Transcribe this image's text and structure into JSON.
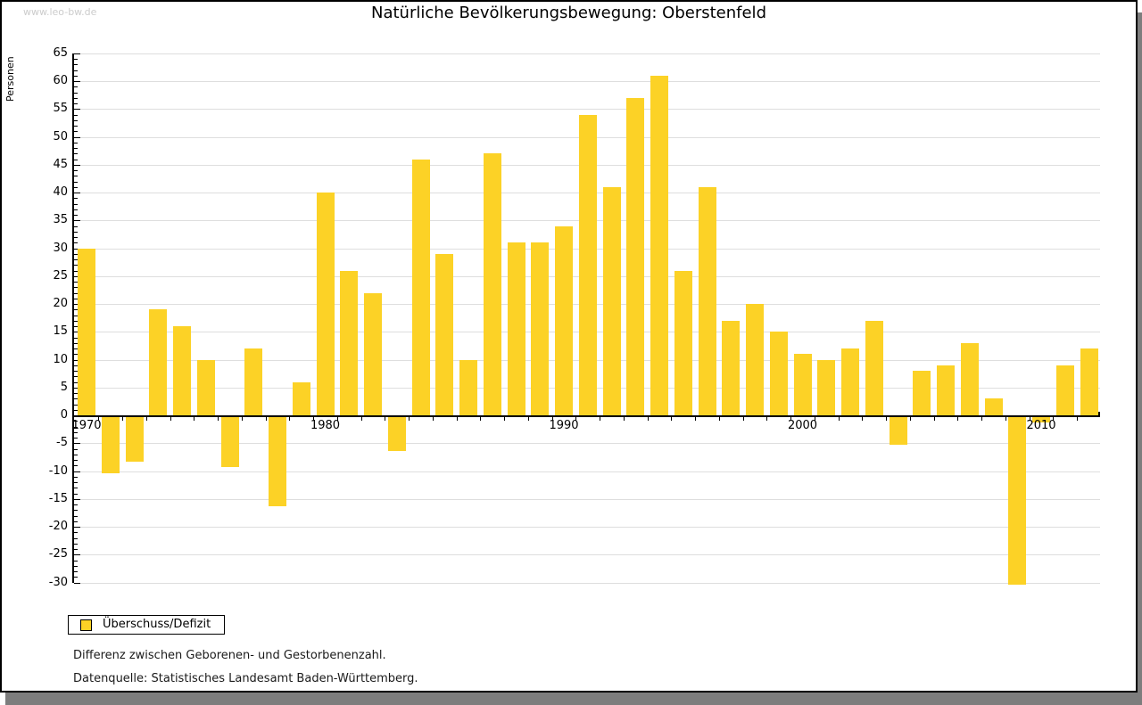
{
  "watermark": "www.leo-bw.de",
  "title": "Natürliche Bevölkerungsbewegung: Oberstenfeld",
  "legend": {
    "label": "Überschuss/Defizit"
  },
  "footnotes": {
    "line1": "Differenz zwischen Geborenen- und Gestorbenenzahl.",
    "line2": "Datenquelle: Statistisches Landesamt Baden-Württemberg."
  },
  "colors": {
    "bar": "#fcd226",
    "grid": "#dedede",
    "watermark": "#cccccc",
    "shadow": "#7d7d7d"
  },
  "chart_data": {
    "type": "bar",
    "title": "Natürliche Bevölkerungsbewegung: Oberstenfeld",
    "ylabel": "Personen",
    "xlabel": "",
    "series_name": "Überschuss/Defizit",
    "x": [
      1970,
      1971,
      1972,
      1973,
      1974,
      1975,
      1976,
      1977,
      1978,
      1979,
      1980,
      1981,
      1982,
      1983,
      1984,
      1985,
      1986,
      1987,
      1988,
      1989,
      1990,
      1991,
      1992,
      1993,
      1994,
      1995,
      1996,
      1997,
      1998,
      1999,
      2000,
      2001,
      2002,
      2003,
      2004,
      2005,
      2006,
      2007,
      2008,
      2009,
      2010,
      2011,
      2012
    ],
    "values": [
      30,
      -10,
      -8,
      19,
      16,
      10,
      -9,
      12,
      -16,
      6,
      40,
      26,
      22,
      -6,
      46,
      29,
      10,
      47,
      31,
      31,
      34,
      54,
      41,
      57,
      61,
      26,
      41,
      17,
      20,
      15,
      11,
      10,
      12,
      17,
      -5,
      8,
      9,
      13,
      3,
      -30,
      -1,
      9,
      12
    ],
    "ylim": [
      -30,
      65
    ],
    "ytick_step": 5,
    "y_minor_tick_step": 1,
    "xticks_labeled": [
      1970,
      1980,
      1990,
      2000,
      2010
    ],
    "grid": true,
    "legend_position": "bottom-left"
  }
}
